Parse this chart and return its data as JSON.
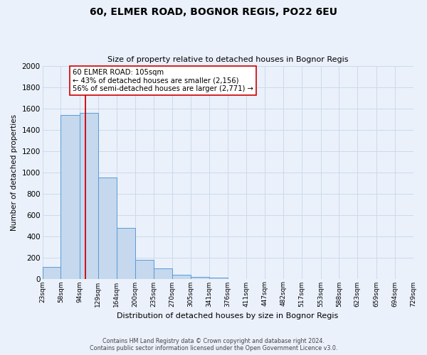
{
  "title": "60, ELMER ROAD, BOGNOR REGIS, PO22 6EU",
  "subtitle": "Size of property relative to detached houses in Bognor Regis",
  "xlabel": "Distribution of detached houses by size in Bognor Regis",
  "ylabel": "Number of detached properties",
  "footer_line1": "Contains HM Land Registry data © Crown copyright and database right 2024.",
  "footer_line2": "Contains public sector information licensed under the Open Government Licence v3.0.",
  "bar_edges": [
    23,
    58,
    94,
    129,
    164,
    200,
    235,
    270,
    305,
    341,
    376,
    411,
    447,
    482,
    517,
    553,
    588,
    623,
    659,
    694,
    729
  ],
  "bar_heights": [
    110,
    1540,
    1560,
    950,
    480,
    180,
    100,
    35,
    20,
    10,
    0,
    0,
    0,
    0,
    0,
    0,
    0,
    0,
    0,
    0
  ],
  "bar_color": "#c5d8ed",
  "bar_edge_color": "#5b9bd5",
  "grid_color": "#ccdaeb",
  "background_color": "#eaf1fb",
  "plot_bg_color": "#eaf1fb",
  "vline_x": 105,
  "vline_color": "#cc0000",
  "annotation_line1": "60 ELMER ROAD: 105sqm",
  "annotation_line2": "← 43% of detached houses are smaller (2,156)",
  "annotation_line3": "56% of semi-detached houses are larger (2,771) →",
  "annotation_box_color": "#ffffff",
  "annotation_box_edge_color": "#cc0000",
  "ylim": [
    0,
    2000
  ],
  "yticks": [
    0,
    200,
    400,
    600,
    800,
    1000,
    1200,
    1400,
    1600,
    1800,
    2000
  ],
  "tick_labels": [
    "23sqm",
    "58sqm",
    "94sqm",
    "129sqm",
    "164sqm",
    "200sqm",
    "235sqm",
    "270sqm",
    "305sqm",
    "341sqm",
    "376sqm",
    "411sqm",
    "447sqm",
    "482sqm",
    "517sqm",
    "553sqm",
    "588sqm",
    "623sqm",
    "659sqm",
    "694sqm",
    "729sqm"
  ]
}
